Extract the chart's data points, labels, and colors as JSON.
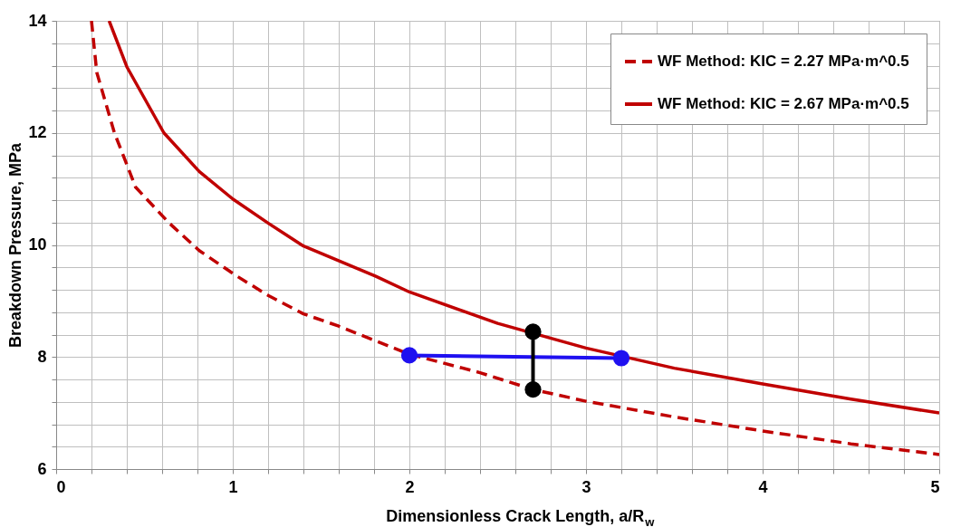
{
  "chart_data": {
    "type": "line",
    "xlabel": "Dimensionless Crack Length, a/R$_{w}$",
    "ylabel": "Breakdown Pressure, MPa",
    "xlim": [
      0,
      5
    ],
    "ylim": [
      6,
      14
    ],
    "xticks": [
      0,
      {
        "value": 0.2,
        "label": null
      },
      {
        "value": 0.4,
        "label": null
      },
      {
        "value": 0.6,
        "label": null
      },
      {
        "value": 0.8,
        "label": null
      },
      1,
      {
        "value": 1.2,
        "label": null
      },
      {
        "value": 1.4,
        "label": null
      },
      {
        "value": 1.6,
        "label": null
      },
      {
        "value": 1.8,
        "label": null
      },
      2,
      {
        "value": 2.2,
        "label": null
      },
      {
        "value": 2.4,
        "label": null
      },
      {
        "value": 2.6,
        "label": null
      },
      {
        "value": 2.8,
        "label": null
      },
      3,
      {
        "value": 3.2,
        "label": null
      },
      {
        "value": 3.4,
        "label": null
      },
      {
        "value": 3.6,
        "label": null
      },
      {
        "value": 3.8,
        "label": null
      },
      4,
      {
        "value": 4.2,
        "label": null
      },
      {
        "value": 4.4,
        "label": null
      },
      {
        "value": 4.6,
        "label": null
      },
      {
        "value": 4.8,
        "label": null
      },
      5
    ],
    "yticks": [
      6,
      {
        "value": 6.4,
        "label": null
      },
      {
        "value": 6.8,
        "label": null
      },
      {
        "value": 7.2,
        "label": null
      },
      {
        "value": 7.6,
        "label": null
      },
      8,
      {
        "value": 8.4,
        "label": null
      },
      {
        "value": 8.8,
        "label": null
      },
      {
        "value": 9.2,
        "label": null
      },
      {
        "value": 9.6,
        "label": null
      },
      10,
      {
        "value": 10.4,
        "label": null
      },
      {
        "value": 10.8,
        "label": null
      },
      {
        "value": 11.2,
        "label": null
      },
      {
        "value": 11.6,
        "label": null
      },
      12,
      {
        "value": 12.4,
        "label": null
      },
      {
        "value": 12.8,
        "label": null
      },
      {
        "value": 13.2,
        "label": null
      },
      {
        "value": 13.6,
        "label": null
      },
      14
    ],
    "grid": true,
    "legend": "top right",
    "series": [
      {
        "name": "WF Method: KIC = 2.27 MPa·m^0.5",
        "color": "#c00000",
        "line_style": "dashed",
        "marker": "none",
        "x": [
          0.2,
          0.23,
          0.33,
          0.45,
          0.64,
          0.81,
          1.02,
          1.2,
          1.4,
          1.6,
          2,
          2.4,
          2.7,
          3,
          3.5,
          4,
          4.5,
          5
        ],
        "values": [
          14,
          13.08,
          12.0,
          11.03,
          10.39,
          9.9,
          9.45,
          9.1,
          8.77,
          8.55,
          8.05,
          7.72,
          7.42,
          7.21,
          6.93,
          6.68,
          6.45,
          6.26
        ]
      },
      {
        "name": "WF Method: KIC = 2.67  MPa·m^0.5",
        "color": "#c00000",
        "line_style": "solid",
        "marker": "none",
        "x": [
          0.3,
          0.4,
          0.61,
          0.81,
          1.0,
          1.2,
          1.4,
          1.81,
          2,
          2.5,
          3,
          3.5,
          4,
          4.5,
          5
        ],
        "values": [
          14,
          13.18,
          12.0,
          11.31,
          10.82,
          10.39,
          9.98,
          9.44,
          9.16,
          8.6,
          8.16,
          7.8,
          7.52,
          7.25,
          7.0
        ]
      },
      {
        "color": "#1f10f0",
        "line_style": "solid",
        "marker": "circle",
        "x": [
          2,
          3.2
        ],
        "values": [
          8.03,
          7.98
        ]
      },
      {
        "color": "#000000",
        "line_style": "solid",
        "marker": "circle",
        "x": [
          2.7,
          2.7
        ],
        "values": [
          8.45,
          7.42
        ]
      }
    ]
  }
}
